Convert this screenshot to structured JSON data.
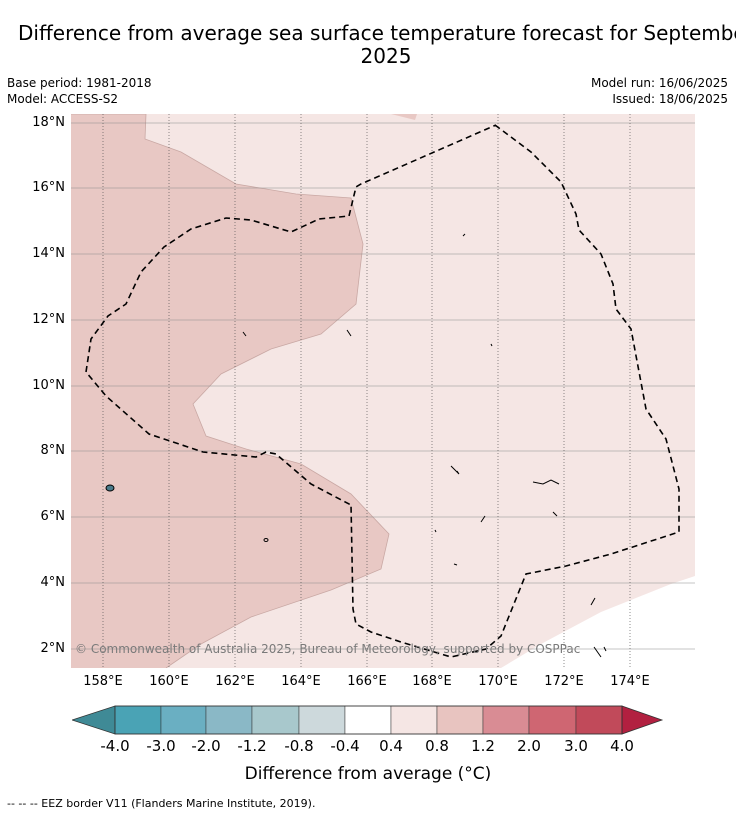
{
  "title": "Difference from average sea surface temperature forecast for September 2025",
  "meta": {
    "base_period": "Base period: 1981-2018",
    "model": "Model: ACCESS-S2",
    "model_run": "Model run: 16/06/2025",
    "issued": "Issued: 18/06/2025"
  },
  "map": {
    "lat_labels": [
      "18°N",
      "16°N",
      "14°N",
      "12°N",
      "10°N",
      "8°N",
      "6°N",
      "4°N",
      "2°N"
    ],
    "lon_labels": [
      "158°E",
      "160°E",
      "162°E",
      "164°E",
      "166°E",
      "168°E",
      "170°E",
      "172°E",
      "174°E"
    ],
    "copyright": "© Commonwealth of Australia 2025, Bureau of Meteorology, supported by COSPPac"
  },
  "colorbar": {
    "title": "Difference from average (°C)",
    "tick_labels": [
      "-4.0",
      "-3.0",
      "-2.0",
      "-1.2",
      "-0.8",
      "-0.4",
      "0.4",
      "0.8",
      "1.2",
      "2.0",
      "3.0",
      "4.0"
    ],
    "colors": [
      "#3f8a96",
      "#4aa3b5",
      "#6aafc2",
      "#8ab8c6",
      "#a8c8cc",
      "#cdd9dc",
      "#ffffff",
      "#f5e6e4",
      "#e8c4c0",
      "#d98c94",
      "#cf6672",
      "#c14a5a",
      "#b22040"
    ]
  },
  "legend": {
    "eez_border": "--  --  -- EEZ border V11 (Flanders Marine Institute, 2019)."
  }
}
